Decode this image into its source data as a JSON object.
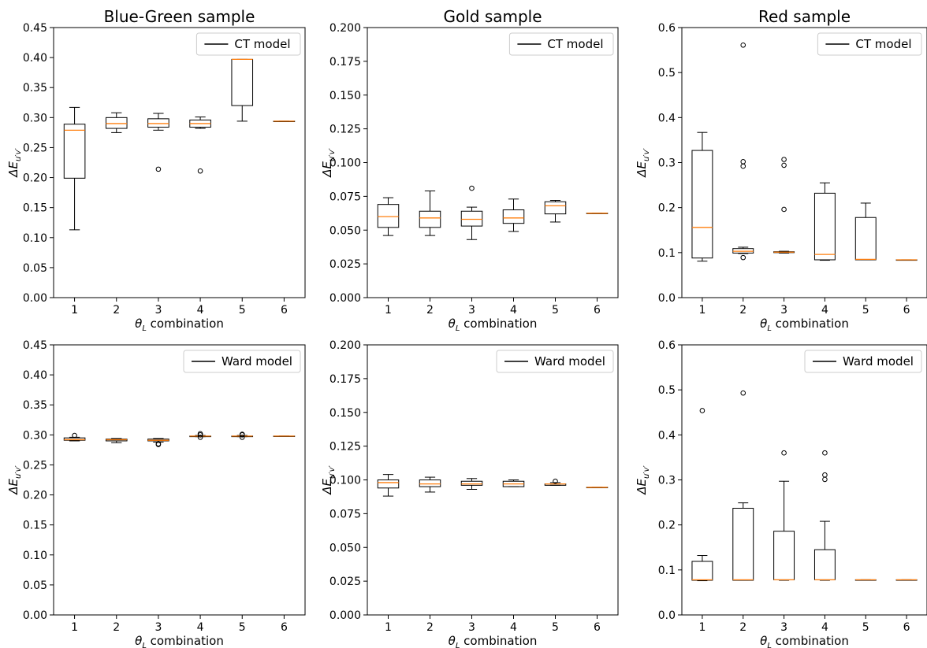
{
  "chart_data": [
    {
      "type": "box",
      "title": "Blue-Green sample",
      "xlabel": "combination",
      "ylabel": "ΔE",
      "legend": {
        "label": "CT model",
        "placement": "top-right"
      },
      "ylim": [
        0,
        0.45
      ],
      "yticks": [
        "0.00",
        "0.05",
        "0.10",
        "0.15",
        "0.20",
        "0.25",
        "0.30",
        "0.35",
        "0.40",
        "0.45"
      ],
      "categories": [
        "1",
        "2",
        "3",
        "4",
        "5",
        "6"
      ],
      "boxes": [
        {
          "whisker_low": 0.113,
          "q1": 0.199,
          "median": 0.279,
          "q3": 0.289,
          "whisker_high": 0.317,
          "outliers": []
        },
        {
          "whisker_low": 0.275,
          "q1": 0.282,
          "median": 0.29,
          "q3": 0.3,
          "whisker_high": 0.308,
          "outliers": []
        },
        {
          "whisker_low": 0.279,
          "q1": 0.284,
          "median": 0.29,
          "q3": 0.298,
          "whisker_high": 0.307,
          "outliers": [
            0.214
          ]
        },
        {
          "whisker_low": 0.282,
          "q1": 0.284,
          "median": 0.29,
          "q3": 0.296,
          "whisker_high": 0.301,
          "outliers": [
            0.211
          ]
        },
        {
          "whisker_low": 0.294,
          "q1": 0.32,
          "median": 0.397,
          "q3": 0.397,
          "whisker_high": 0.397,
          "outliers": []
        },
        {
          "whisker_low": 0.294,
          "q1": 0.294,
          "median": 0.294,
          "q3": 0.294,
          "whisker_high": 0.294,
          "outliers": []
        }
      ]
    },
    {
      "type": "box",
      "title": "Gold sample",
      "xlabel": "combination",
      "ylabel": "ΔE",
      "legend": {
        "label": "CT model",
        "placement": "top-right"
      },
      "ylim": [
        0,
        0.2
      ],
      "yticks": [
        "0.000",
        "0.025",
        "0.050",
        "0.075",
        "0.100",
        "0.125",
        "0.150",
        "0.175",
        "0.200"
      ],
      "categories": [
        "1",
        "2",
        "3",
        "4",
        "5",
        "6"
      ],
      "boxes": [
        {
          "whisker_low": 0.046,
          "q1": 0.052,
          "median": 0.06,
          "q3": 0.069,
          "whisker_high": 0.074,
          "outliers": []
        },
        {
          "whisker_low": 0.046,
          "q1": 0.052,
          "median": 0.059,
          "q3": 0.064,
          "whisker_high": 0.079,
          "outliers": []
        },
        {
          "whisker_low": 0.043,
          "q1": 0.053,
          "median": 0.058,
          "q3": 0.064,
          "whisker_high": 0.067,
          "outliers": [
            0.081
          ]
        },
        {
          "whisker_low": 0.049,
          "q1": 0.055,
          "median": 0.059,
          "q3": 0.065,
          "whisker_high": 0.073,
          "outliers": []
        },
        {
          "whisker_low": 0.056,
          "q1": 0.062,
          "median": 0.068,
          "q3": 0.071,
          "whisker_high": 0.072,
          "outliers": []
        },
        {
          "whisker_low": 0.0625,
          "q1": 0.0625,
          "median": 0.0625,
          "q3": 0.0625,
          "whisker_high": 0.0625,
          "outliers": []
        }
      ]
    },
    {
      "type": "box",
      "title": "Red sample",
      "xlabel": "combination",
      "ylabel": "ΔE",
      "legend": {
        "label": "CT model",
        "placement": "top-right"
      },
      "ylim": [
        0,
        0.6
      ],
      "yticks": [
        "0.0",
        "0.1",
        "0.2",
        "0.3",
        "0.4",
        "0.5",
        "0.6"
      ],
      "categories": [
        "1",
        "2",
        "3",
        "4",
        "5",
        "6"
      ],
      "boxes": [
        {
          "whisker_low": 0.081,
          "q1": 0.088,
          "median": 0.156,
          "q3": 0.327,
          "whisker_high": 0.367,
          "outliers": []
        },
        {
          "whisker_low": 0.098,
          "q1": 0.099,
          "median": 0.103,
          "q3": 0.109,
          "whisker_high": 0.112,
          "outliers": [
            0.089,
            0.292,
            0.302,
            0.561
          ]
        },
        {
          "whisker_low": 0.099,
          "q1": 0.1,
          "median": 0.101,
          "q3": 0.102,
          "whisker_high": 0.103,
          "outliers": [
            0.196,
            0.294,
            0.307
          ]
        },
        {
          "whisker_low": 0.083,
          "q1": 0.084,
          "median": 0.096,
          "q3": 0.232,
          "whisker_high": 0.255,
          "outliers": []
        },
        {
          "whisker_low": 0.084,
          "q1": 0.084,
          "median": 0.085,
          "q3": 0.178,
          "whisker_high": 0.21,
          "outliers": []
        },
        {
          "whisker_low": 0.084,
          "q1": 0.084,
          "median": 0.084,
          "q3": 0.084,
          "whisker_high": 0.084,
          "outliers": []
        }
      ]
    },
    {
      "type": "box",
      "title": "",
      "xlabel": "combination",
      "ylabel": "ΔE",
      "legend": {
        "label": "Ward model",
        "placement": "top-right"
      },
      "ylim": [
        0,
        0.45
      ],
      "yticks": [
        "0.00",
        "0.05",
        "0.10",
        "0.15",
        "0.20",
        "0.25",
        "0.30",
        "0.35",
        "0.40",
        "0.45"
      ],
      "categories": [
        "1",
        "2",
        "3",
        "4",
        "5",
        "6"
      ],
      "boxes": [
        {
          "whisker_low": 0.29,
          "q1": 0.291,
          "median": 0.292,
          "q3": 0.295,
          "whisker_high": 0.296,
          "outliers": [
            0.299
          ]
        },
        {
          "whisker_low": 0.287,
          "q1": 0.29,
          "median": 0.292,
          "q3": 0.293,
          "whisker_high": 0.294,
          "outliers": []
        },
        {
          "whisker_low": 0.288,
          "q1": 0.29,
          "median": 0.291,
          "q3": 0.293,
          "whisker_high": 0.294,
          "outliers": [
            0.285,
            0.284
          ]
        },
        {
          "whisker_low": 0.297,
          "q1": 0.297,
          "median": 0.298,
          "q3": 0.298,
          "whisker_high": 0.299,
          "outliers": [
            0.296,
            0.3,
            0.302
          ]
        },
        {
          "whisker_low": 0.297,
          "q1": 0.297,
          "median": 0.298,
          "q3": 0.298,
          "whisker_high": 0.299,
          "outliers": [
            0.296,
            0.3,
            0.301
          ]
        },
        {
          "whisker_low": 0.298,
          "q1": 0.298,
          "median": 0.298,
          "q3": 0.298,
          "whisker_high": 0.298,
          "outliers": []
        }
      ]
    },
    {
      "type": "box",
      "title": "",
      "xlabel": "combination",
      "ylabel": "ΔE",
      "legend": {
        "label": "Ward model",
        "placement": "top-right"
      },
      "ylim": [
        0,
        0.2
      ],
      "yticks": [
        "0.000",
        "0.025",
        "0.050",
        "0.075",
        "0.100",
        "0.125",
        "0.150",
        "0.175",
        "0.200"
      ],
      "categories": [
        "1",
        "2",
        "3",
        "4",
        "5",
        "6"
      ],
      "boxes": [
        {
          "whisker_low": 0.088,
          "q1": 0.094,
          "median": 0.098,
          "q3": 0.1,
          "whisker_high": 0.104,
          "outliers": []
        },
        {
          "whisker_low": 0.091,
          "q1": 0.095,
          "median": 0.097,
          "q3": 0.1,
          "whisker_high": 0.102,
          "outliers": []
        },
        {
          "whisker_low": 0.093,
          "q1": 0.096,
          "median": 0.097,
          "q3": 0.099,
          "whisker_high": 0.101,
          "outliers": []
        },
        {
          "whisker_low": 0.095,
          "q1": 0.095,
          "median": 0.097,
          "q3": 0.099,
          "whisker_high": 0.1,
          "outliers": []
        },
        {
          "whisker_low": 0.096,
          "q1": 0.096,
          "median": 0.097,
          "q3": 0.097,
          "whisker_high": 0.098,
          "outliers": [
            0.099
          ]
        },
        {
          "whisker_low": 0.0945,
          "q1": 0.0945,
          "median": 0.0945,
          "q3": 0.0945,
          "whisker_high": 0.0945,
          "outliers": []
        }
      ]
    },
    {
      "type": "box",
      "title": "",
      "xlabel": "combination",
      "ylabel": "ΔE",
      "legend": {
        "label": "Ward model",
        "placement": "top-right"
      },
      "ylim": [
        0,
        0.6
      ],
      "yticks": [
        "0.0",
        "0.1",
        "0.2",
        "0.3",
        "0.4",
        "0.5",
        "0.6"
      ],
      "categories": [
        "1",
        "2",
        "3",
        "4",
        "5",
        "6"
      ],
      "boxes": [
        {
          "whisker_low": 0.076,
          "q1": 0.077,
          "median": 0.078,
          "q3": 0.119,
          "whisker_high": 0.132,
          "outliers": [
            0.454
          ]
        },
        {
          "whisker_low": 0.077,
          "q1": 0.077,
          "median": 0.078,
          "q3": 0.237,
          "whisker_high": 0.249,
          "outliers": [
            0.493
          ]
        },
        {
          "whisker_low": 0.077,
          "q1": 0.078,
          "median": 0.078,
          "q3": 0.186,
          "whisker_high": 0.297,
          "outliers": [
            0.36
          ]
        },
        {
          "whisker_low": 0.077,
          "q1": 0.078,
          "median": 0.078,
          "q3": 0.145,
          "whisker_high": 0.208,
          "outliers": [
            0.301,
            0.311,
            0.36
          ]
        },
        {
          "whisker_low": 0.078,
          "q1": 0.078,
          "median": 0.078,
          "q3": 0.078,
          "whisker_high": 0.078,
          "outliers": []
        },
        {
          "whisker_low": 0.078,
          "q1": 0.078,
          "median": 0.078,
          "q3": 0.078,
          "whisker_high": 0.078,
          "outliers": []
        }
      ]
    }
  ],
  "colors": {
    "median": "#ff7f0e",
    "box": "#000000",
    "background": "#ffffff"
  },
  "label_symbols": {
    "theta": "θ",
    "theta_sub": "L",
    "e_sub": "u′v′"
  }
}
